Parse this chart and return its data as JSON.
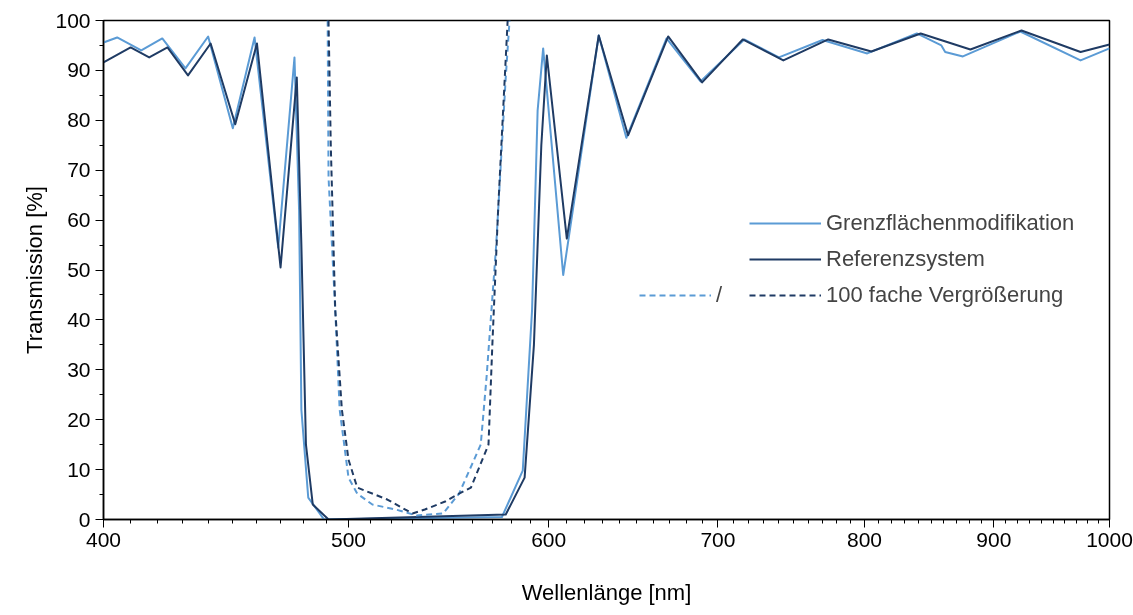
{
  "chart_data": {
    "type": "line",
    "xlabel": "Wellenlänge [nm]",
    "ylabel": "Transmission [%]",
    "log": "x",
    "xlim": [
      400,
      1000
    ],
    "xticks": [
      400,
      500,
      600,
      700,
      800,
      900,
      1000
    ],
    "ylim": [
      0,
      100
    ],
    "yticks": [
      0,
      10,
      20,
      30,
      40,
      50,
      60,
      70,
      80,
      90,
      100
    ],
    "grid": false,
    "legend": "right",
    "annotations": [
      "/"
    ],
    "series": [
      {
        "name": "Grenzflächenmodifikation",
        "color": "#5b9bd5",
        "line_style": "solid",
        "x": [
          400,
          405,
          414,
          422,
          431,
          440,
          450,
          459,
          469,
          476,
          478,
          479,
          482,
          489,
          575,
          586,
          591,
          594,
          597,
          608,
          628,
          644,
          668,
          689,
          717,
          740,
          770,
          802,
          839,
          858,
          861,
          875,
          922,
          974,
          1000
        ],
        "values": [
          95.6,
          96.6,
          94,
          96.4,
          90.4,
          96.8,
          78.4,
          96.6,
          54.5,
          92.6,
          62,
          22,
          4.4,
          0,
          0.5,
          9.8,
          42,
          82,
          94.4,
          49,
          97,
          76.5,
          96.4,
          87.8,
          96.2,
          92.6,
          96.1,
          93.4,
          97.4,
          95,
          93.7,
          92.8,
          97.8,
          92,
          94.4
        ]
      },
      {
        "name": "Referenzsystem",
        "color": "#1f3b64",
        "line_style": "solid",
        "x": [
          400,
          410,
          417,
          424,
          432,
          441,
          451,
          460,
          470,
          477,
          479,
          481,
          484,
          491,
          577,
          587,
          592,
          596,
          599,
          610,
          628,
          645,
          669,
          690,
          716,
          743,
          774,
          805,
          842,
          881,
          923,
          974,
          1000
        ],
        "values": [
          91.6,
          94.6,
          92.6,
          94.6,
          89,
          95.4,
          79.2,
          95.4,
          50.5,
          88.6,
          55,
          15,
          3,
          0,
          1,
          8.4,
          35,
          75,
          93,
          56.3,
          97,
          77,
          96.8,
          87.6,
          96.2,
          92,
          96.2,
          93.8,
          97.4,
          94.2,
          98,
          93.7,
          95.2
        ]
      },
      {
        "color": "#5b9bd5",
        "line_style": "dashed",
        "x": [
          490.6,
          491,
          494,
          496,
          500,
          504,
          511,
          522,
          532,
          545,
          553,
          564,
          567,
          572,
          577,
          579
        ],
        "values": [
          100,
          68.5,
          42,
          22,
          8.4,
          5.2,
          3,
          2,
          0.8,
          1.2,
          5.2,
          15,
          28.5,
          55,
          88.6,
          100
        ]
      },
      {
        "name": "100 fache Vergrößerung",
        "color": "#1f3b64",
        "line_style": "dashed",
        "x": [
          491,
          492,
          494,
          497,
          500,
          504,
          518,
          530,
          536,
          546,
          553,
          559,
          568,
          570,
          573,
          578
        ],
        "values": [
          100,
          75,
          42,
          22,
          12,
          6.4,
          4,
          1.2,
          2,
          3.6,
          5.2,
          6.4,
          15,
          35,
          62,
          100
        ]
      }
    ]
  }
}
